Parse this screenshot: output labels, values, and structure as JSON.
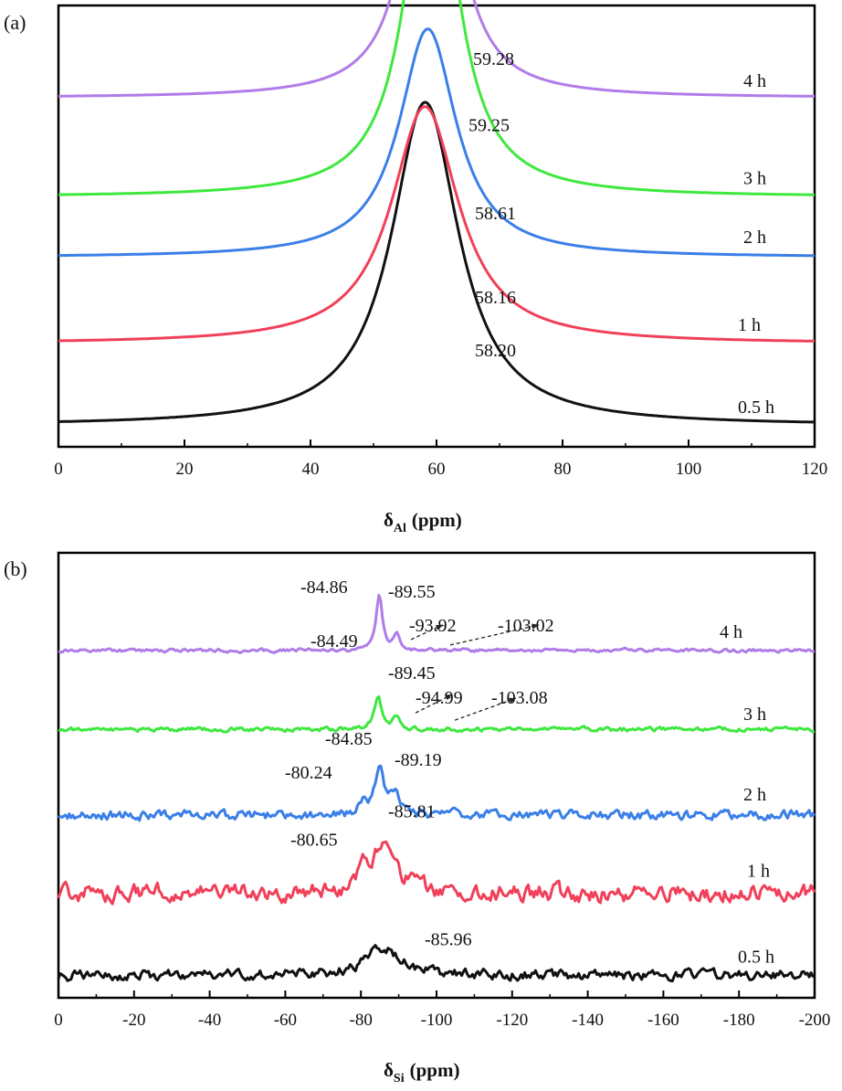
{
  "chart_data": [
    {
      "panel_label": "(a)",
      "type": "line",
      "xlabel_symbol": "δ",
      "xlabel_sub": "Al",
      "xlabel_unit": "(ppm)",
      "xlim": [
        0,
        120
      ],
      "x_ticks": [
        0,
        20,
        40,
        60,
        80,
        100,
        120
      ],
      "x_tick_labels": [
        "0",
        "20",
        "40",
        "60",
        "80",
        "100",
        "120"
      ],
      "series": [
        {
          "name": "0.5 h",
          "color": "#111111",
          "baseline": 0.03,
          "noise": 0.0,
          "peaks": [
            {
              "center": 58.2,
              "height": 0.75,
              "width": 6.5,
              "label": "58.20"
            }
          ]
        },
        {
          "name": "1 h",
          "color": "#f0405a",
          "baseline": 0.22,
          "noise": 0.0,
          "peaks": [
            {
              "center": 58.16,
              "height": 0.55,
              "width": 6.5,
              "label": "58.16"
            }
          ]
        },
        {
          "name": "2 h",
          "color": "#3a7fe8",
          "baseline": 0.42,
          "noise": 0.0,
          "peaks": [
            {
              "center": 58.61,
              "height": 0.53,
              "width": 5.5,
              "label": "58.61"
            }
          ]
        },
        {
          "name": "3 h",
          "color": "#3ee83e",
          "baseline": 0.56,
          "noise": 0.0,
          "peaks": [
            {
              "center": 59.25,
              "height": 0.85,
              "width": 4.8,
              "label": "59.25"
            }
          ]
        },
        {
          "name": "4 h",
          "color": "#b07ce8",
          "baseline": 0.79,
          "noise": 0.0,
          "peaks": [
            {
              "center": 59.28,
              "height": 0.8,
              "width": 4.2,
              "label": "59.28"
            }
          ]
        }
      ]
    },
    {
      "panel_label": "(b)",
      "type": "line",
      "xlabel_symbol": "δ",
      "xlabel_sub": "Si",
      "xlabel_unit": "(ppm)",
      "xlim": [
        0,
        -200
      ],
      "x_ticks": [
        0,
        -20,
        -40,
        -60,
        -80,
        -100,
        -120,
        -140,
        -160,
        -180,
        -200
      ],
      "x_tick_labels": [
        "0",
        "-20",
        "-40",
        "-60",
        "-80",
        "-100",
        "-120",
        "-140",
        "-160",
        "-180",
        "-200"
      ],
      "series": [
        {
          "name": "0.5 h",
          "color": "#111111",
          "baseline": 0.035,
          "noise": 0.012,
          "peaks": [
            {
              "center": -85.96,
              "height": 0.065,
              "width": 5.5,
              "label": "-85.96"
            }
          ]
        },
        {
          "name": "1 h",
          "color": "#f0405a",
          "baseline": 0.225,
          "noise": 0.02,
          "peaks": [
            {
              "center": -80.65,
              "height": 0.04,
              "width": 1.5,
              "label": "-80.65"
            },
            {
              "center": -85.81,
              "height": 0.1,
              "width": 4.2,
              "label": "-85.81"
            }
          ]
        },
        {
          "name": "2 h",
          "color": "#3a7fe8",
          "baseline": 0.405,
          "noise": 0.011,
          "peaks": [
            {
              "center": -80.24,
              "height": 0.02,
              "width": 1.5,
              "label": "-80.24"
            },
            {
              "center": -84.85,
              "height": 0.105,
              "width": 1.6,
              "label": "-84.85"
            },
            {
              "center": -89.19,
              "height": 0.045,
              "width": 1.5,
              "label": "-89.19"
            }
          ]
        },
        {
          "name": "3 h",
          "color": "#3ee83e",
          "baseline": 0.603,
          "noise": 0.005,
          "peaks": [
            {
              "center": -84.49,
              "height": 0.075,
              "width": 1.2,
              "label": "-84.49"
            },
            {
              "center": -89.45,
              "height": 0.028,
              "width": 1.2,
              "label": "-89.45"
            },
            {
              "center": -94.99,
              "height": 0.0,
              "width": 1.0,
              "label": "-94.99"
            },
            {
              "center": -103.08,
              "height": 0.0,
              "width": 1.0,
              "label": "-103.08"
            }
          ]
        },
        {
          "name": "4 h",
          "color": "#b07ce8",
          "baseline": 0.785,
          "noise": 0.004,
          "peaks": [
            {
              "center": -84.86,
              "height": 0.13,
              "width": 1.0,
              "label": "-84.86"
            },
            {
              "center": -89.55,
              "height": 0.04,
              "width": 1.0,
              "label": "-89.55"
            },
            {
              "center": -93.92,
              "height": 0.0,
              "width": 1.0,
              "label": "-93.92"
            },
            {
              "center": -103.02,
              "height": 0.0,
              "width": 1.0,
              "label": "-103.02"
            }
          ]
        }
      ]
    }
  ]
}
